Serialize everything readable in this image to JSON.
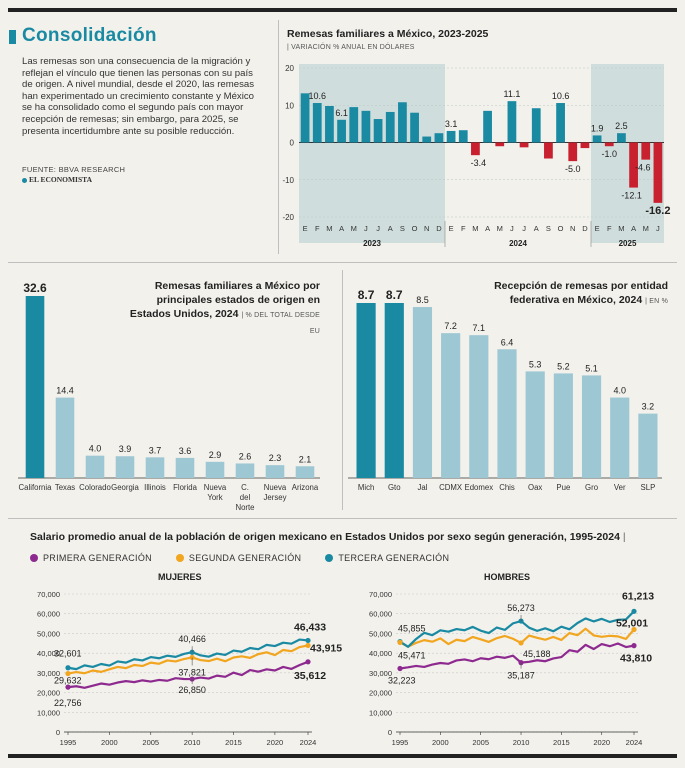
{
  "header": {
    "title": "Consolidación",
    "intro": "Las remesas son una consecuencia de la migración y reflejan el vínculo que tienen las personas con su país de origen. A nivel mundial, desde el 2020, las remesas han experimentado un crecimiento constante y México se ha consolidado como el segundo país con mayor recepción de remesas; sin embargo, para 2025, se presenta incertidumbre ante su posible reducción.",
    "source": "FUENTE: BBVA RESEARCH",
    "logo": "EL ECONOMISTA"
  },
  "colors": {
    "teal": "#1a8aa3",
    "light": "#9ec7d4",
    "red": "#c8202f",
    "purple": "#8e2a8f",
    "orange": "#f2a51f",
    "shade": "#cfdedc"
  },
  "chart_data": [
    {
      "id": "remesas_var",
      "type": "bar",
      "title": "Remesas familiares a México, 2023-2025",
      "subtitle": "VARIACIÓN % ANUAL EN DÓLARES",
      "ylim": [
        -20,
        20
      ],
      "yticks": [
        "20",
        "10",
        "0",
        "-10",
        "-20"
      ],
      "months": [
        "E",
        "F",
        "M",
        "A",
        "M",
        "J",
        "J",
        "A",
        "S",
        "O",
        "N",
        "D",
        "E",
        "F",
        "M",
        "A",
        "M",
        "J",
        "J",
        "A",
        "S",
        "O",
        "N",
        "D",
        "E",
        "F",
        "M",
        "A",
        "M",
        "J"
      ],
      "years": [
        "2023",
        "2024",
        "2025"
      ],
      "values": [
        13.2,
        10.6,
        9.8,
        6.1,
        9.5,
        8.5,
        6.3,
        8.2,
        10.8,
        8.0,
        1.6,
        2.5,
        3.1,
        3.3,
        -3.4,
        8.5,
        -1.0,
        11.1,
        -1.3,
        9.2,
        -4.3,
        10.6,
        -5.0,
        -1.5,
        1.9,
        -1.0,
        2.5,
        -12.1,
        -4.6,
        -16.2
      ],
      "labels": [
        "",
        "10.6",
        "",
        "6.1",
        "",
        "",
        "",
        "",
        "",
        "",
        "",
        "",
        "3.1",
        "",
        "-3.4",
        "",
        "",
        "11.1",
        "",
        "",
        "",
        "10.6",
        "-5.0",
        "",
        "1.9",
        "-1.0",
        "2.5",
        "-12.1",
        "-4.6",
        "-16.2"
      ]
    },
    {
      "id": "estados_origen",
      "type": "bar",
      "title": "Remesas familiares a México por principales estados de origen en Estados Unidos, 2024",
      "subtitle": "% DEL TOTAL DESDE EU",
      "categories": [
        "California",
        "Texas",
        "Colorado",
        "Georgia",
        "Illinois",
        "Florida",
        "Nueva York",
        "C. del Norte",
        "Nueva Jersey",
        "Arizona"
      ],
      "values": [
        32.6,
        14.4,
        4.0,
        3.9,
        3.7,
        3.6,
        2.9,
        2.6,
        2.3,
        2.1
      ],
      "labels": [
        "32.6",
        "14.4",
        "4.0",
        "3.9",
        "3.7",
        "3.6",
        "2.9",
        "2.6",
        "2.3",
        "2.1"
      ]
    },
    {
      "id": "entidad_federativa",
      "type": "bar",
      "title": "Recepción de remesas por entidad federativa en México, 2024",
      "subtitle": "EN %",
      "categories": [
        "Mich",
        "Gto",
        "Jal",
        "CDMX",
        "Edomex",
        "Chis",
        "Oax",
        "Pue",
        "Gro",
        "Ver",
        "SLP"
      ],
      "values": [
        8.7,
        8.7,
        8.5,
        7.2,
        7.1,
        6.4,
        5.3,
        5.2,
        5.1,
        4.0,
        3.2
      ],
      "labels": [
        "8.7",
        "8.7",
        "8.5",
        "7.2",
        "7.1",
        "6.4",
        "5.3",
        "5.2",
        "5.1",
        "4.0",
        "3.2"
      ]
    },
    {
      "id": "salario",
      "type": "line",
      "title": "Salario promedio anual de la población de origen mexicano en Estados Unidos por sexo según generación, 1995-2024",
      "legend": [
        "PRIMERA GENERACIÓN",
        "SEGUNDA GENERACIÓN",
        "TERCERA GENERACIÓN"
      ],
      "yticks": [
        "70,000",
        "60,000",
        "50,000",
        "40,000",
        "30,000",
        "20,000",
        "10,000",
        "0"
      ],
      "xticks": [
        "1995",
        "2000",
        "2005",
        "2010",
        "2015",
        "2020",
        "2024"
      ],
      "panels": [
        {
          "name": "MUJERES",
          "series": [
            {
              "name": "PRIMERA GENERACIÓN",
              "values": [
                22756,
                23200,
                22400,
                23500,
                24600,
                24000,
                25100,
                25800,
                25300,
                26200,
                25600,
                26400,
                26000,
                27300,
                26900,
                26850,
                27600,
                27100,
                28600,
                28000,
                30100,
                28900,
                31400,
                30600,
                31800,
                31200,
                33000,
                32000,
                34000,
                35612
              ]
            },
            {
              "name": "SEGUNDA GENERACIÓN",
              "values": [
                29632,
                30400,
                29800,
                31200,
                30500,
                31800,
                33000,
                32400,
                34000,
                33500,
                35200,
                34600,
                36300,
                35800,
                37000,
                37821,
                36500,
                36000,
                37200,
                35900,
                37800,
                38400,
                37600,
                39500,
                40400,
                39000,
                41600,
                41000,
                43100,
                43915
              ]
            },
            {
              "name": "TERCERA GENERACIÓN",
              "values": [
                32601,
                31900,
                33800,
                33000,
                34500,
                33700,
                35800,
                35200,
                36900,
                36300,
                38000,
                37400,
                38700,
                38100,
                39600,
                40466,
                38900,
                38200,
                39800,
                39100,
                41300,
                40700,
                42600,
                42000,
                44200,
                43600,
                45300,
                44800,
                46900,
                46433
              ]
            }
          ],
          "annotations": [
            "32,601",
            "29,632",
            "22,756",
            "40,466",
            "37,821",
            "26,850",
            "46,433",
            "43,915",
            "35,612"
          ]
        },
        {
          "name": "HOMBRES",
          "series": [
            {
              "name": "PRIMERA GENERACIÓN",
              "values": [
                32223,
                32800,
                33500,
                33000,
                34200,
                35000,
                34600,
                36300,
                36800,
                35900,
                37400,
                36900,
                38200,
                37600,
                38700,
                35187,
                35600,
                36400,
                35900,
                37300,
                38000,
                41500,
                40700,
                44200,
                42100,
                44600,
                43500,
                44900,
                43100,
                43810
              ]
            },
            {
              "name": "SEGUNDA GENERACIÓN",
              "values": [
                45471,
                43300,
                45200,
                46600,
                45800,
                47500,
                44600,
                46800,
                46100,
                48200,
                47000,
                45700,
                47600,
                48700,
                47300,
                45188,
                48900,
                47800,
                46800,
                48200,
                46700,
                50200,
                49100,
                52400,
                49000,
                48300,
                48800,
                48500,
                47200,
                52001
              ]
            },
            {
              "name": "TERCERA GENERACIÓN",
              "values": [
                45855,
                43200,
                47200,
                50300,
                49100,
                51600,
                50900,
                52200,
                51600,
                53300,
                51400,
                50200,
                53000,
                51800,
                55100,
                56273,
                52900,
                51300,
                52600,
                51100,
                53400,
                52100,
                55300,
                57600,
                56100,
                57400,
                55800,
                56900,
                57100,
                61213
              ]
            }
          ],
          "annotations": [
            "45,855",
            "45,471",
            "32,223",
            "56,273",
            "45,188",
            "35,187",
            "61,213",
            "52,001",
            "43,810"
          ]
        }
      ]
    }
  ]
}
